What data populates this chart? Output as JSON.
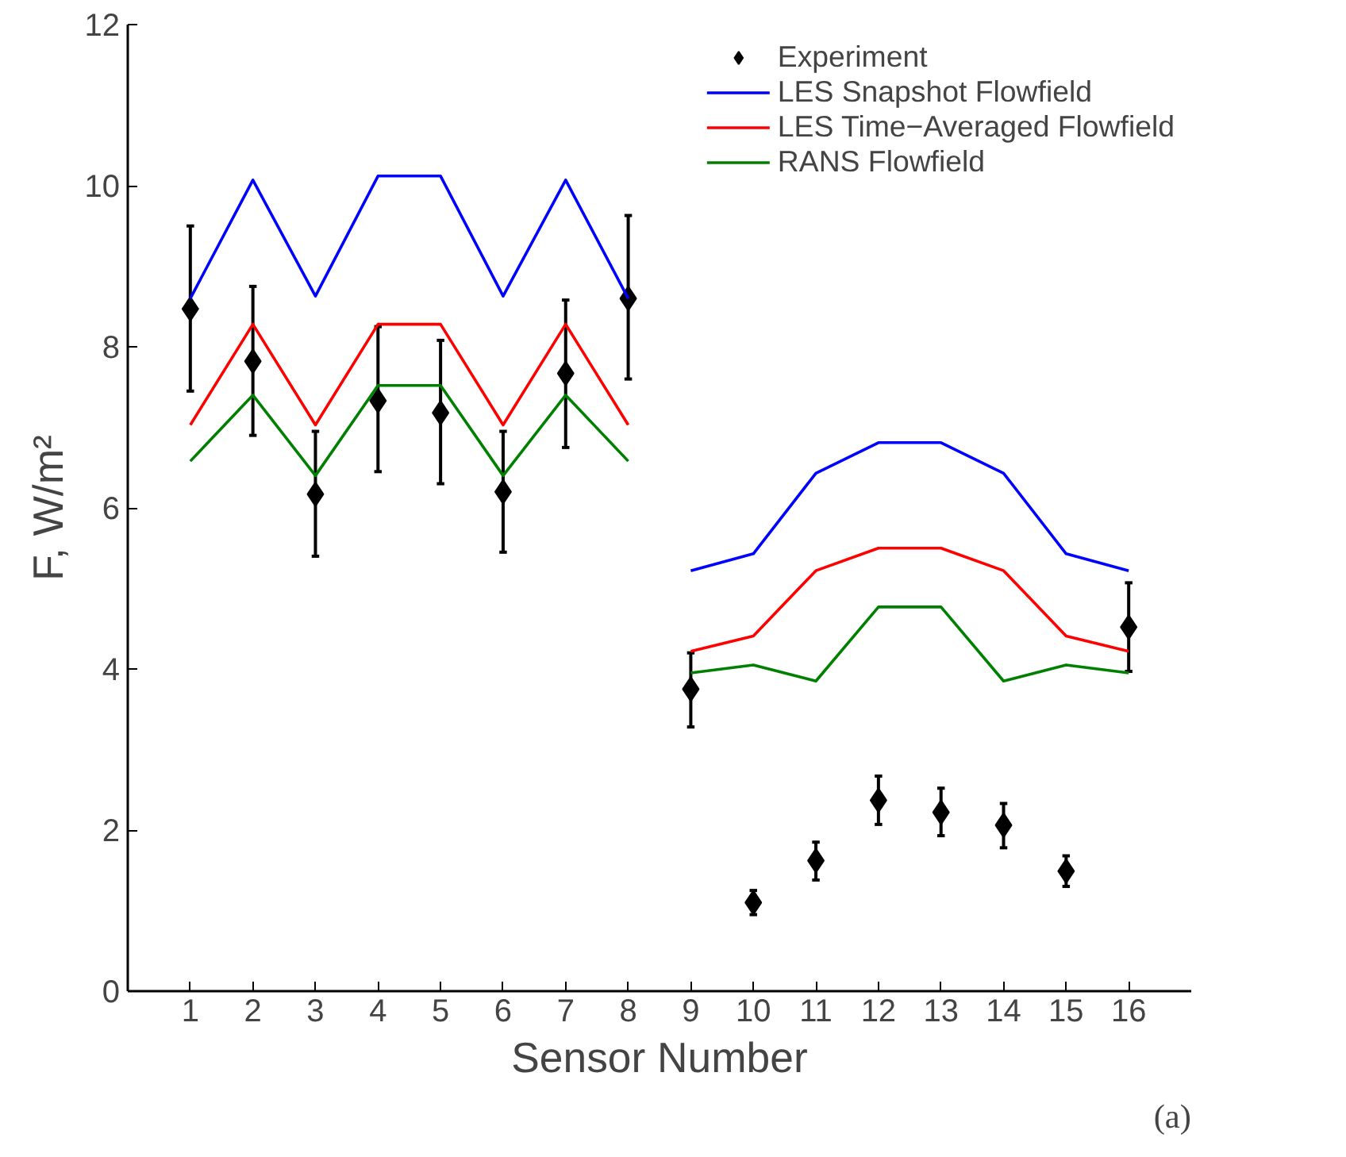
{
  "chart_data": {
    "type": "line",
    "xlabel": "Sensor Number",
    "ylabel": "F, W/m²",
    "x": [
      1,
      2,
      3,
      4,
      5,
      6,
      7,
      8
    ],
    "xlim": [
      0,
      17
    ],
    "xticks": [
      1,
      2,
      3,
      4,
      5,
      6,
      7,
      8,
      9,
      10,
      11,
      12,
      13,
      14,
      15,
      16
    ],
    "ylim": [
      0,
      12
    ],
    "yticks": [
      0,
      2,
      4,
      6,
      8,
      10,
      12
    ],
    "grid": false,
    "legend": "top right",
    "marker": "none",
    "line_style": "solid",
    "series": [
      {
        "name": "Experiment",
        "type": "scatter",
        "marker": "diamond",
        "color": "#000000",
        "x": [
          1,
          2,
          3,
          4,
          5,
          6,
          7,
          8,
          9,
          10,
          11,
          12,
          13,
          14,
          15,
          16
        ],
        "values": [
          8.47,
          7.82,
          6.17,
          7.33,
          7.18,
          6.2,
          7.67,
          8.6,
          3.75,
          1.1,
          1.62,
          2.37,
          2.22,
          2.06,
          1.49,
          4.52
        ],
        "errors": [
          [
            7.45,
            9.5
          ],
          [
            6.9,
            8.75
          ],
          [
            5.4,
            6.95
          ],
          [
            6.45,
            8.25
          ],
          [
            6.3,
            8.08
          ],
          [
            5.45,
            6.95
          ],
          [
            6.75,
            8.58
          ],
          [
            7.6,
            9.63
          ],
          [
            3.28,
            4.2
          ],
          [
            0.95,
            1.25
          ],
          [
            1.38,
            1.85
          ],
          [
            2.07,
            2.67
          ],
          [
            1.93,
            2.52
          ],
          [
            1.78,
            2.33
          ],
          [
            1.3,
            1.68
          ],
          [
            3.97,
            5.07
          ]
        ]
      },
      {
        "name": "LES Snapshot Flowfield",
        "color": "#0000ff",
        "values": [
          8.6,
          10.07,
          8.63,
          10.12,
          10.12,
          8.63,
          10.07,
          8.6
        ]
      },
      {
        "name": "LES Time−Averaged Flowfield",
        "color": "#ff0000",
        "values": [
          7.03,
          8.28,
          7.03,
          8.28,
          8.28,
          7.03,
          8.28,
          7.03
        ]
      },
      {
        "name": "RANS Flowfield",
        "color": "#008000",
        "values": [
          6.58,
          7.4,
          6.4,
          7.52,
          7.52,
          6.4,
          7.4,
          6.58
        ]
      },
      {
        "color": "#0000ff",
        "x": [
          9,
          10,
          11,
          12,
          13,
          14,
          15,
          16
        ],
        "values": [
          5.22,
          5.43,
          6.43,
          6.81,
          6.81,
          6.43,
          5.43,
          5.22
        ]
      },
      {
        "color": "#ff0000",
        "x": [
          9,
          10,
          11,
          12,
          13,
          14,
          15,
          16
        ],
        "values": [
          4.22,
          4.41,
          5.22,
          5.5,
          5.5,
          5.22,
          4.41,
          4.22
        ]
      },
      {
        "color": "#008000",
        "x": [
          9,
          10,
          11,
          12,
          13,
          14,
          15,
          16
        ],
        "values": [
          3.95,
          4.05,
          3.85,
          4.77,
          4.77,
          3.85,
          4.05,
          3.95
        ]
      }
    ],
    "annotations": [
      "(a)"
    ]
  }
}
